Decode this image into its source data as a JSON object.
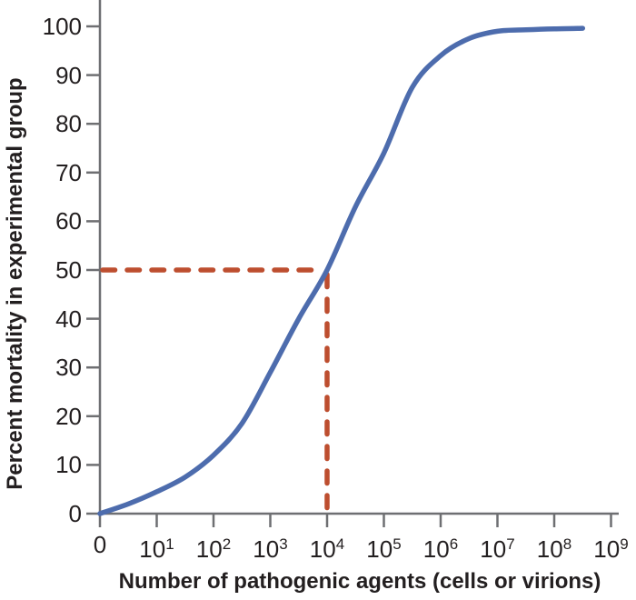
{
  "colors": {
    "curve": "#4d6cad",
    "dashed_reference": "#bd4e2f",
    "axis": "#6e6f72",
    "text": "#231f20",
    "background": "#ffffff"
  },
  "chart_data": {
    "type": "line",
    "title": "",
    "xlabel": "Number of pathogenic agents (cells or virions)",
    "ylabel": "Percent mortality in experimental group",
    "x_scale": "log-decades",
    "x_tick_labels": [
      "0",
      "10^1",
      "10^2",
      "10^3",
      "10^4",
      "10^5",
      "10^6",
      "10^7",
      "10^8",
      "10^9"
    ],
    "y_tick_labels": [
      "0",
      "10",
      "20",
      "30",
      "40",
      "50",
      "60",
      "70",
      "80",
      "90",
      "100"
    ],
    "ylim": [
      0,
      100
    ],
    "grid": "off",
    "legend": "none",
    "series": [
      {
        "name": "percent-mortality-curve",
        "color": "#4d6cad",
        "x_in_decade_ticks": [
          0,
          0.5,
          1,
          1.5,
          2,
          2.5,
          3,
          3.5,
          4,
          4.5,
          5,
          5.5,
          6,
          6.5,
          7,
          7.5,
          8,
          8.5
        ],
        "y_percent": [
          0,
          2,
          4.5,
          7.5,
          12,
          18.5,
          29,
          40,
          50,
          63,
          74,
          87.5,
          94,
          97.5,
          99,
          99.3,
          99.5,
          99.6
        ]
      }
    ],
    "annotations": [
      {
        "name": "ld50-dashed-crosshair",
        "style": "dashed",
        "color": "#bd4e2f",
        "x_decade_tick": 4,
        "x_value_label": "10^4",
        "y_percent": 50
      }
    ]
  }
}
